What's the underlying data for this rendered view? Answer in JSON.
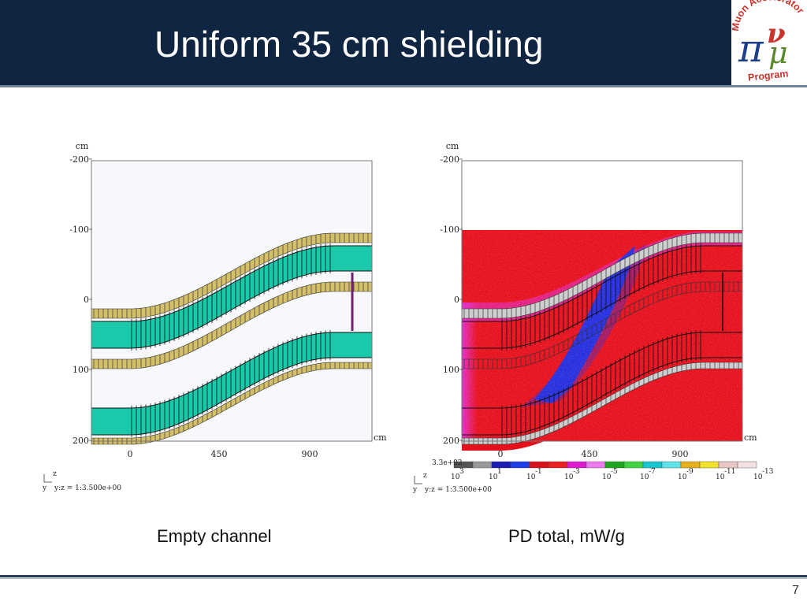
{
  "slide": {
    "title": "Uniform 35 cm shielding",
    "page_number": "7"
  },
  "logo": {
    "arc_text": "Muon Accelerator",
    "bottom_text": "Program",
    "symbol_pi": "π",
    "symbol_nu": "ν",
    "symbol_mu": "μ",
    "colors": {
      "pi": "#1d3f8c",
      "nu": "#c9332c",
      "mu": "#5a8a2e",
      "text": "#c9332c"
    }
  },
  "figures": [
    {
      "caption": "Empty channel",
      "unit_label": "cm",
      "y_ticks": [
        "-200",
        "-100",
        "0",
        "100",
        "200"
      ],
      "x_ticks": [
        "0",
        "450",
        "900"
      ],
      "axis_letter_z": "z",
      "axis_letter_y": "y",
      "scale_text": "y:z = 1:3.500e+00",
      "colors": {
        "channel": "#1ac9aa",
        "shield": "#d4c06a",
        "wall": "#7a1a7a",
        "background": "#f7f8fc"
      }
    },
    {
      "caption": "PD total, mW/g",
      "unit_label": "cm",
      "y_ticks": [
        "-200",
        "-100",
        "0",
        "100",
        "200"
      ],
      "x_ticks": [
        "0",
        "450",
        "900"
      ],
      "axis_letter_z": "z",
      "axis_letter_y": "y",
      "scale_text": "y:z = 1:3.500e+00",
      "colorbar": {
        "max_label": "3.3e+02",
        "base": "10",
        "exponents": [
          "3",
          "1",
          "-1",
          "-3",
          "-5",
          "-7",
          "-9",
          "-11",
          "-13"
        ],
        "colors": [
          "#555555",
          "#999999",
          "#1d1db3",
          "#1d3ee8",
          "#d9131b",
          "#ea2222",
          "#e01cd2",
          "#ef7aef",
          "#1ea61e",
          "#3fd43f",
          "#17c6cf",
          "#5fe3ea",
          "#e6b11c",
          "#f1e02c",
          "#e8c6c6",
          "#f4e0e0"
        ]
      },
      "heatmap_colors": {
        "base": "#e60f1c",
        "core": "#1f2fe6",
        "edge": "#e12ed6"
      }
    }
  ]
}
